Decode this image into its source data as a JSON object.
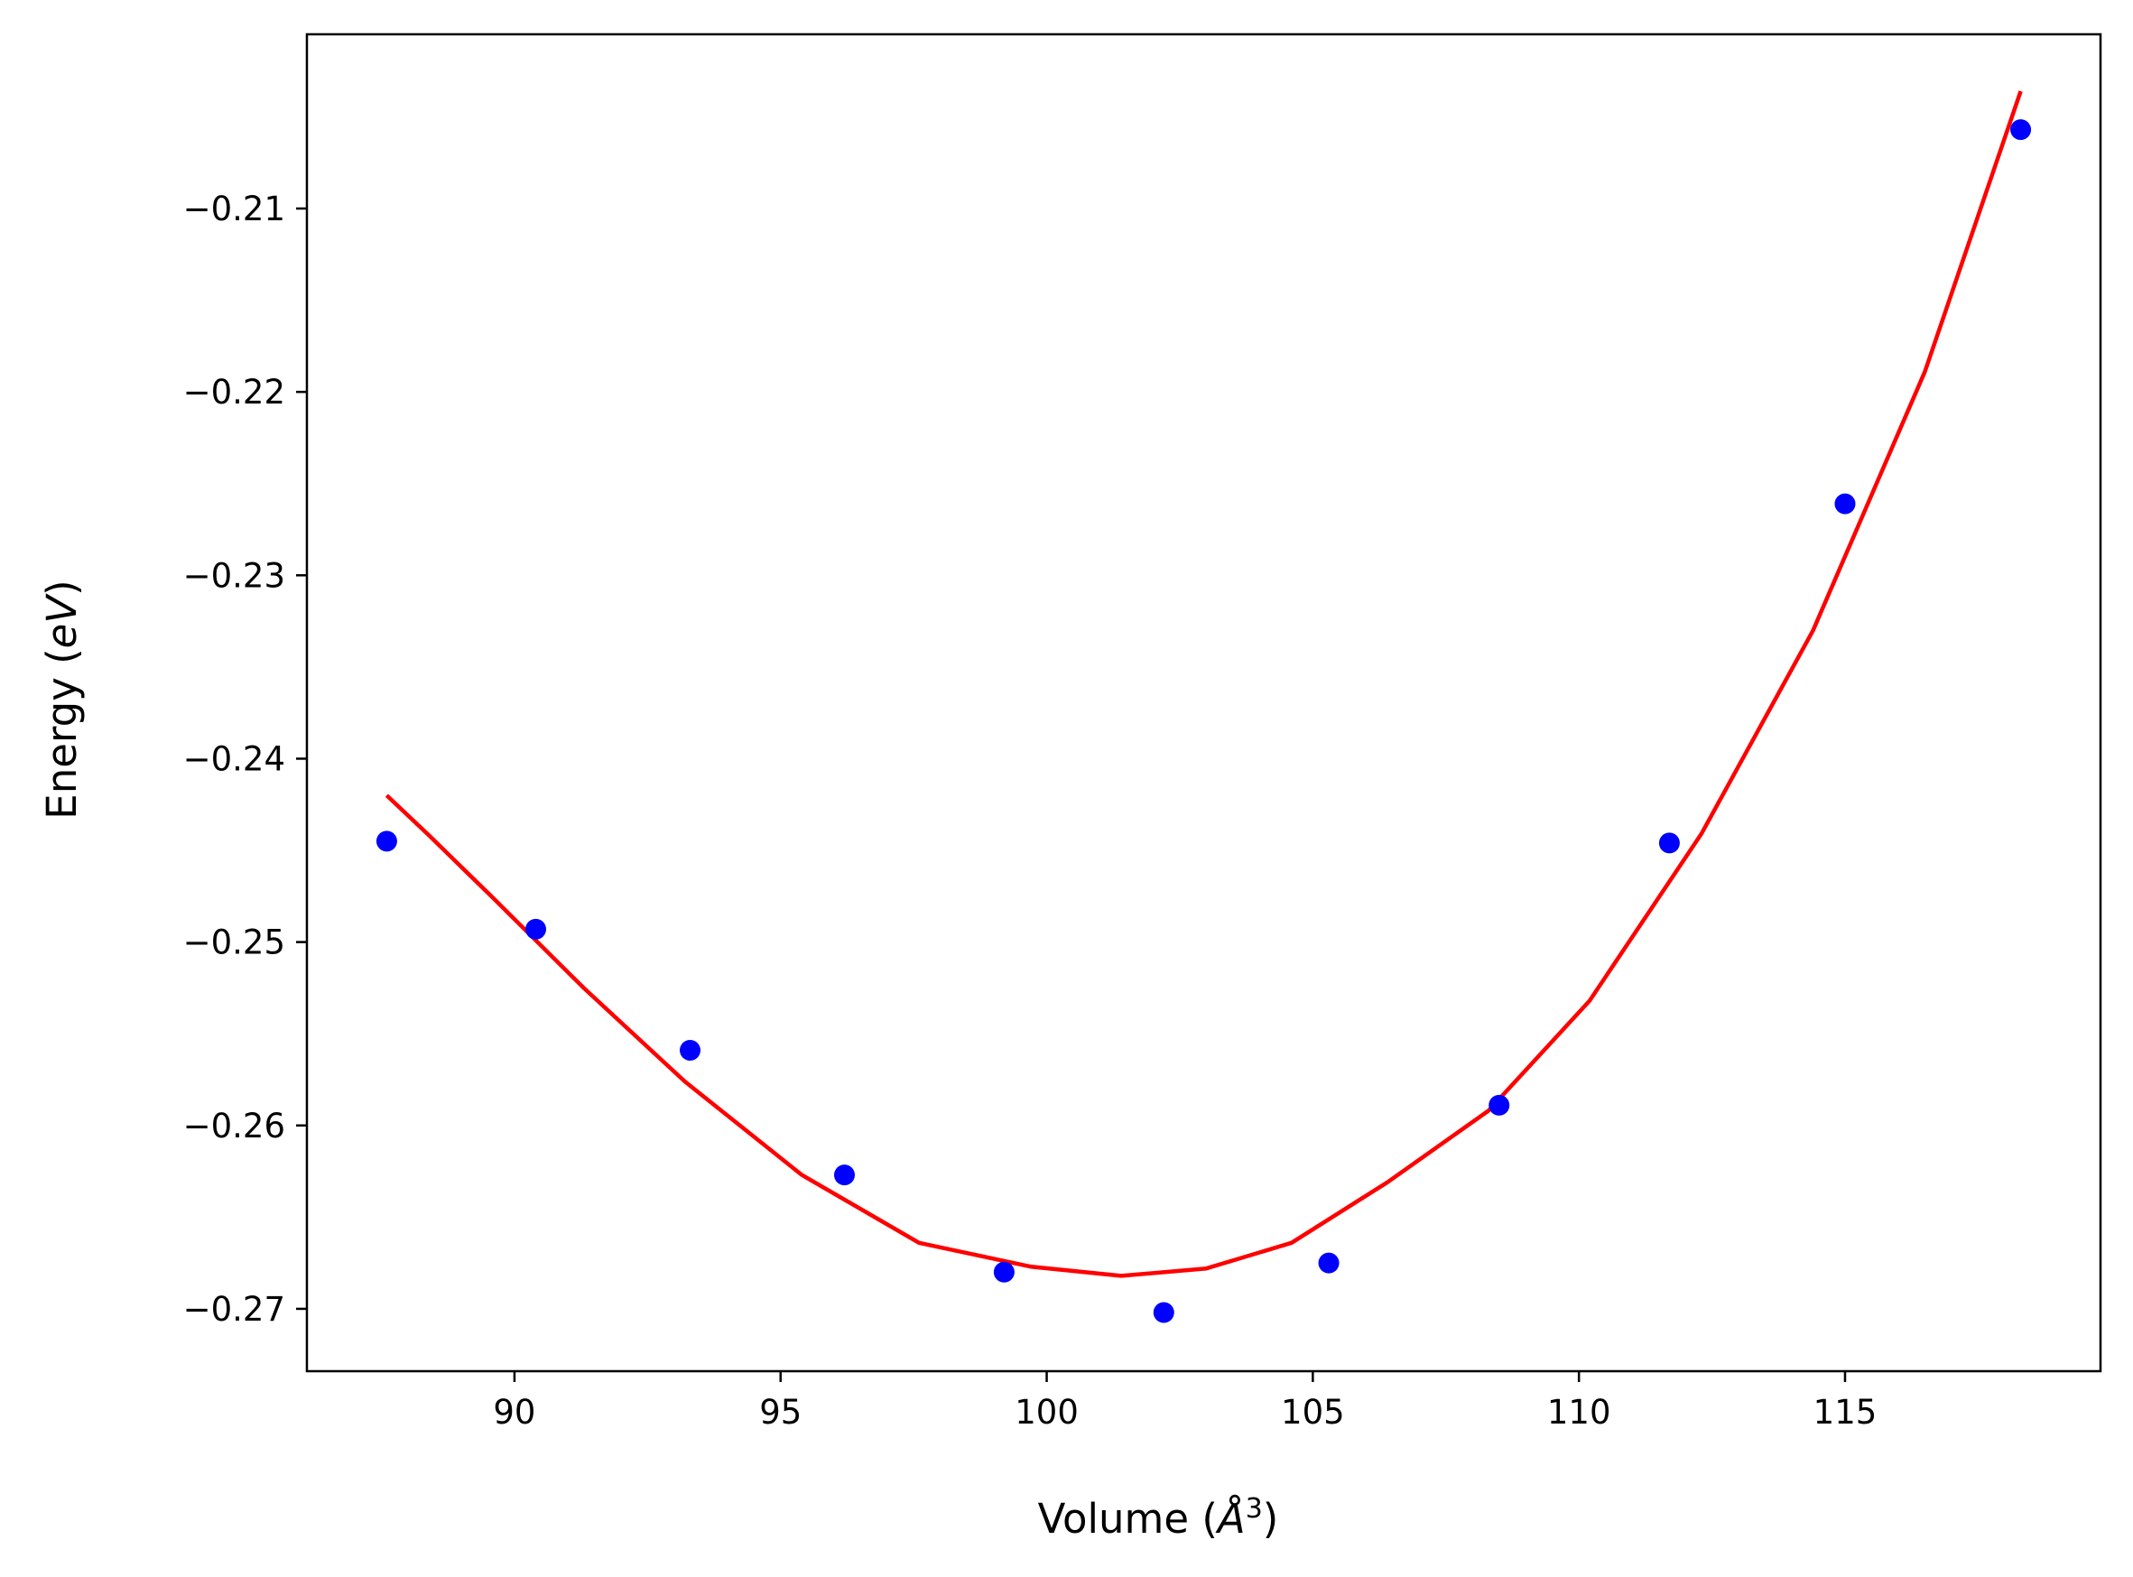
{
  "chart_data": {
    "type": "scatter",
    "title": "",
    "xlabel": "Volume (Å³)",
    "ylabel": "Energy (eV)",
    "xlabel_parts": {
      "pre": "Volume (",
      "sym": "Å",
      "sup": "3",
      "post": ")"
    },
    "ylabel_parts": {
      "pre": "Energy (",
      "sym": "eV",
      "post": ")"
    },
    "xlim": [
      86.1,
      119.8
    ],
    "ylim": [
      -0.2734,
      -0.2005
    ],
    "grid": false,
    "legend": "none",
    "x_ticks": [
      {
        "value": 90,
        "label": "90"
      },
      {
        "value": 95,
        "label": "95"
      },
      {
        "value": 100,
        "label": "100"
      },
      {
        "value": 105,
        "label": "105"
      },
      {
        "value": 110,
        "label": "110"
      },
      {
        "value": 115,
        "label": "115"
      }
    ],
    "y_ticks": [
      {
        "value": -0.21,
        "label": "−0.21"
      },
      {
        "value": -0.22,
        "label": "−0.22"
      },
      {
        "value": -0.23,
        "label": "−0.23"
      },
      {
        "value": -0.24,
        "label": "−0.24"
      },
      {
        "value": -0.25,
        "label": "−0.25"
      },
      {
        "value": -0.26,
        "label": "−0.26"
      },
      {
        "value": -0.27,
        "label": "−0.27"
      }
    ],
    "series": [
      {
        "kind": "scatter",
        "color": "#0000ff",
        "x": [
          87.6,
          90.4,
          93.3,
          96.2,
          99.2,
          102.2,
          105.3,
          108.5,
          111.7,
          115.0,
          118.3
        ],
        "y": [
          -0.2445,
          -0.2493,
          -0.2559,
          -0.2627,
          -0.268,
          -0.2702,
          -0.2675,
          -0.2589,
          -0.2446,
          -0.2261,
          -0.2057
        ]
      },
      {
        "kind": "line",
        "color": "#ff0000",
        "x": [
          87.6,
          88.4,
          89.6,
          91.3,
          93.2,
          95.4,
          97.6,
          99.7,
          101.4,
          103.0,
          104.6,
          106.4,
          108.3,
          110.2,
          112.3,
          114.4,
          116.5,
          118.3
        ],
        "y": [
          -0.242,
          -0.2442,
          -0.2476,
          -0.2525,
          -0.2576,
          -0.2627,
          -0.2664,
          -0.2677,
          -0.2682,
          -0.2678,
          -0.2664,
          -0.2631,
          -0.2592,
          -0.2532,
          -0.2441,
          -0.233,
          -0.2189,
          -0.2036
        ]
      }
    ]
  }
}
